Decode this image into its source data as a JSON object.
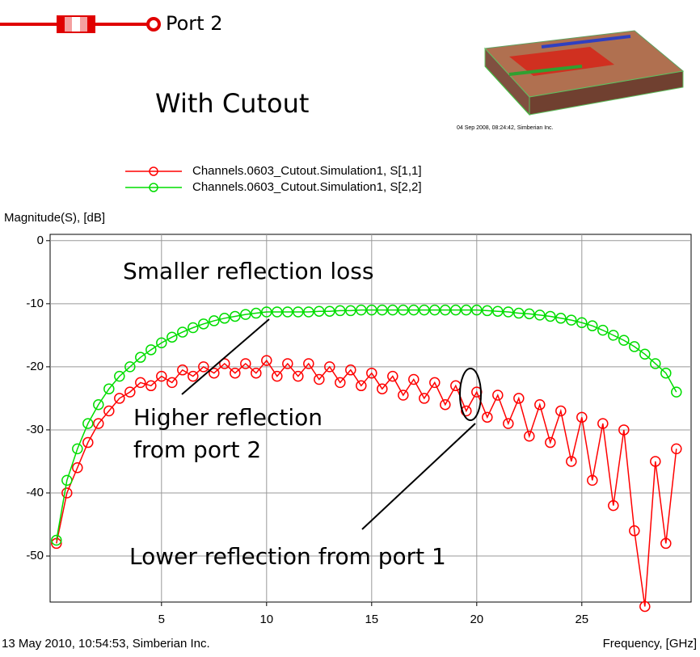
{
  "chart_data": {
    "type": "line",
    "title": "With Cutout",
    "port_label": "Port 2",
    "inset_caption": "04 Sep 2008, 08:24:42, Simberian Inc.",
    "y_label": "Magnitude(S), [dB]",
    "x_label": "Frequency, [GHz]",
    "footer": "13 May 2010, 10:54:53, Simberian Inc.",
    "annotations": [
      "Smaller reflection loss",
      "Higher reflection",
      "from port 2",
      "Lower reflection from port 1"
    ],
    "xlim": [
      -0.3,
      30.2
    ],
    "ylim": [
      -57.3,
      1
    ],
    "xticks": [
      5,
      10,
      15,
      20,
      25
    ],
    "yticks": [
      0,
      -10,
      -20,
      -30,
      -40,
      -50
    ],
    "grid": true,
    "x": [
      0,
      0.5,
      1,
      1.5,
      2,
      2.5,
      3,
      3.5,
      4,
      4.5,
      5,
      5.5,
      6,
      6.5,
      7,
      7.5,
      8,
      8.5,
      9,
      9.5,
      10,
      10.5,
      11,
      11.5,
      12,
      12.5,
      13,
      13.5,
      14,
      14.5,
      15,
      15.5,
      16,
      16.5,
      17,
      17.5,
      18,
      18.5,
      19,
      19.5,
      20,
      20.5,
      21,
      21.5,
      22,
      22.5,
      23,
      23.5,
      24,
      24.5,
      25,
      25.5,
      26,
      26.5,
      27,
      27.5,
      28,
      28.5,
      29,
      29.5
    ],
    "series": [
      {
        "name": "Channels.0603_Cutout.Simulation1, S[1,1]",
        "color": "#ff0000",
        "values": [
          -48,
          -40,
          -36,
          -32,
          -29,
          -27,
          -25,
          -24,
          -22.5,
          -23,
          -21.5,
          -22.5,
          -20.5,
          -21.5,
          -20,
          -21,
          -19.5,
          -21,
          -19.5,
          -21,
          -19,
          -21.5,
          -19.5,
          -21.5,
          -19.5,
          -22,
          -20,
          -22.5,
          -20.5,
          -23,
          -21,
          -23.5,
          -21.5,
          -24.5,
          -22,
          -25,
          -22.5,
          -26,
          -23,
          -27,
          -24,
          -28,
          -24.5,
          -29,
          -25,
          -31,
          -26,
          -32,
          -27,
          -35,
          -28,
          -38,
          -29,
          -42,
          -30,
          -46,
          -58,
          -35,
          -48,
          -33
        ]
      },
      {
        "name": "Channels.0603_Cutout.Simulation1, S[2,2]",
        "color": "#00dd00",
        "values": [
          -47.5,
          -38,
          -33,
          -29,
          -26,
          -23.5,
          -21.5,
          -20,
          -18.5,
          -17.3,
          -16.2,
          -15.3,
          -14.5,
          -13.8,
          -13.2,
          -12.7,
          -12.3,
          -12,
          -11.7,
          -11.5,
          -11.3,
          -11.3,
          -11.3,
          -11.3,
          -11.3,
          -11.2,
          -11.2,
          -11.1,
          -11.1,
          -11,
          -11,
          -11,
          -11,
          -11,
          -11,
          -11,
          -11,
          -11,
          -11,
          -11,
          -11,
          -11.1,
          -11.2,
          -11.3,
          -11.5,
          -11.6,
          -11.8,
          -12,
          -12.3,
          -12.6,
          -13,
          -13.5,
          -14.2,
          -15,
          -15.8,
          -16.8,
          -18,
          -19.5,
          -21,
          -24
        ]
      }
    ]
  }
}
